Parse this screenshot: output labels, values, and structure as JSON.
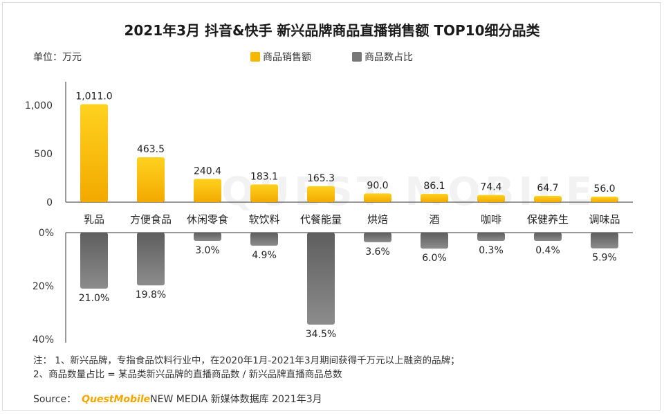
{
  "title": "2021年3月 抖音&快手 新兴品牌商品直播销售额 TOP10细分品类",
  "unit_label": "单位：万元",
  "legend": [
    {
      "label": "商品销售额",
      "color": "#f5b800"
    },
    {
      "label": "商品数占比",
      "color": "#777777"
    }
  ],
  "watermark": "QUEST MOBILE",
  "chart_data": {
    "type": "bar",
    "categories": [
      "乳品",
      "方便食品",
      "休闲零食",
      "软饮料",
      "代餐能量",
      "烘焙",
      "酒",
      "咖啡",
      "保健养生",
      "调味品"
    ],
    "series": [
      {
        "name": "商品销售额",
        "values": [
          1011.0,
          463.5,
          240.4,
          183.1,
          165.3,
          90.0,
          86.1,
          74.4,
          64.7,
          56.0
        ],
        "labels": [
          "1,011.0",
          "463.5",
          "240.4",
          "183.1",
          "165.3",
          "90.0",
          "86.1",
          "74.4",
          "64.7",
          "56.0"
        ],
        "ylim": [
          0,
          1000
        ],
        "ticks": [
          {
            "value": 1000,
            "label": "1,000"
          },
          {
            "value": 500,
            "label": "500"
          },
          {
            "value": 0,
            "label": "0"
          }
        ]
      },
      {
        "name": "商品数占比",
        "values": [
          21.0,
          19.8,
          3.0,
          4.9,
          34.5,
          3.6,
          6.0,
          0.3,
          0.4,
          5.9
        ],
        "labels": [
          "21.0%",
          "19.8%",
          "3.0%",
          "4.9%",
          "34.5%",
          "3.6%",
          "6.0%",
          "0.3%",
          "0.4%",
          "5.9%"
        ],
        "ylim": [
          0,
          40
        ],
        "ticks": [
          {
            "value": 0,
            "label": "0%"
          },
          {
            "value": 20,
            "label": "20%"
          },
          {
            "value": 40,
            "label": "40%"
          }
        ]
      }
    ]
  },
  "notes": [
    "注：  1、新兴品牌，专指食品饮料行业中，在2020年1月-2021年3月期间获得千万元以上融资的品牌；",
    "2、商品数量占比 = 某品类新兴品牌的直播商品数 / 新兴品牌直播商品总数"
  ],
  "source": {
    "prefix": "Source：",
    "brand": "QuestMobile",
    "suffix": "NEW MEDIA 新媒体数据库 2021年3月"
  }
}
